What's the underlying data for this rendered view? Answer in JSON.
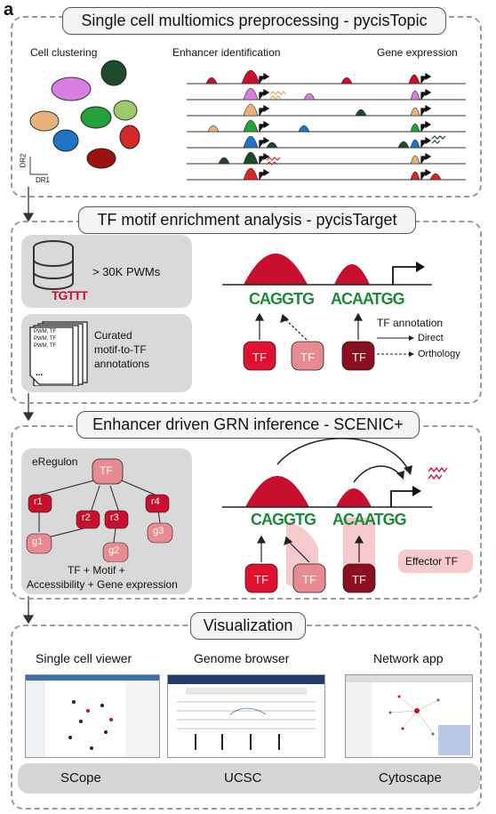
{
  "panel_label": "a",
  "sections": {
    "preprocessing": {
      "title": "Single cell multiomics preprocessing - pycisTopic",
      "cell_clustering": "Cell clustering",
      "enhancer_identification": "Enhancer identification",
      "gene_expression": "Gene expression",
      "axis_y": "DR2",
      "axis_x": "DR1"
    },
    "motif": {
      "title": "TF motif enrichment analysis - pycisTarget",
      "pwm_count": "> 30K PWMs",
      "logo_db": "TGTTT",
      "doc_line1": "PWM",
      "doc_line2": "PWM",
      "doc_line3": "PWM",
      "doc_tf": "TF",
      "curated_line1": "Curated",
      "curated_line2": "motif-to-TF",
      "curated_line3": "annotations",
      "motif1": "CAGGTG",
      "motif2": "ACAATGG",
      "tf_label": "TF",
      "annotation_title": "TF annotation",
      "direct": "Direct",
      "orthology": "Orthology"
    },
    "grn": {
      "title": "Enhancer driven GRN inference - SCENIC+",
      "eregulon": "eRegulon",
      "tf": "TF",
      "regions": [
        "r1",
        "r2",
        "r3",
        "r4"
      ],
      "genes": [
        "g1",
        "g2",
        "g3"
      ],
      "formula_line1": "TF + Motif +",
      "formula_line2": "Accessibility + Gene expression",
      "effector": "Effector TF",
      "motif1": "CAGGTG",
      "motif2": "ACAATGG"
    },
    "visualization": {
      "title": "Visualization",
      "panels": [
        {
          "heading": "Single cell viewer",
          "tool": "SCope"
        },
        {
          "heading": "Genome browser",
          "tool": "UCSC"
        },
        {
          "heading": "Network app",
          "tool": "Cytoscape"
        }
      ]
    }
  },
  "colors": {
    "red": "#c8102e",
    "dark_red": "#8b0f1f",
    "light_red": "#e88a90",
    "pink_bg": "#f6c9cc",
    "gray_box": "#d9d9d9"
  }
}
